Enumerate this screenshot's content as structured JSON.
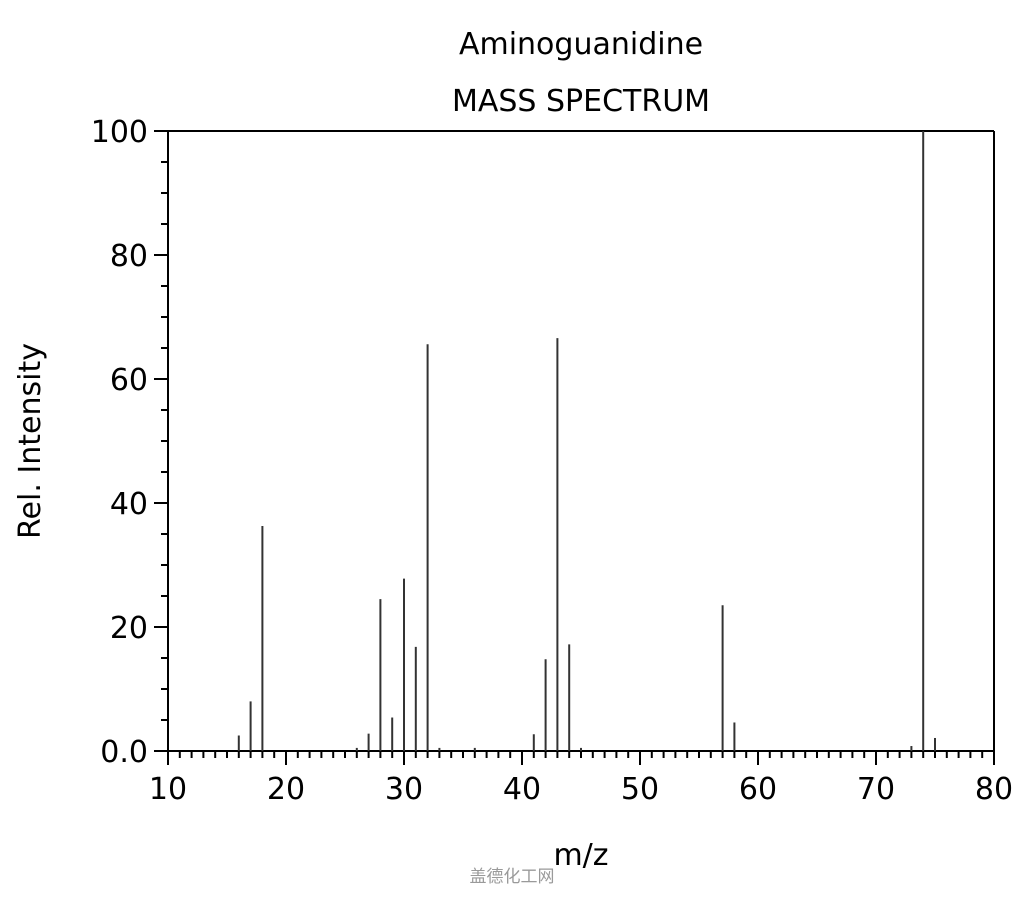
{
  "chart_data": {
    "type": "bar",
    "title": "Aminoguanidine",
    "subtitle": "MASS SPECTRUM",
    "xlabel": "m/z",
    "ylabel": "Rel. Intensity",
    "xlim": [
      10,
      80
    ],
    "ylim": [
      0,
      100
    ],
    "x_ticks": [
      10,
      20,
      30,
      40,
      50,
      60,
      70,
      80
    ],
    "x_tick_labels": [
      "10",
      "20",
      "30",
      "40",
      "50",
      "60",
      "70",
      "80"
    ],
    "y_ticks": [
      0,
      20,
      40,
      60,
      80,
      100
    ],
    "y_tick_labels": [
      "0.0",
      "20",
      "40",
      "60",
      "80",
      "100"
    ],
    "grid": false,
    "series": [
      {
        "x": [
          16,
          17,
          18,
          26,
          27,
          28,
          29,
          30,
          31,
          32,
          33,
          36,
          41,
          42,
          43,
          44,
          45,
          57,
          58,
          73,
          74,
          75
        ],
        "values": [
          2.5,
          8,
          36.3,
          0.5,
          2.8,
          24.5,
          5.4,
          27.8,
          16.8,
          65.6,
          0.5,
          0.5,
          2.7,
          14.8,
          66.6,
          17.2,
          0.5,
          23.5,
          4.6,
          0.8,
          100,
          2.1
        ]
      }
    ]
  },
  "watermark": "盖德化工网",
  "colors": {
    "bar": "#333333",
    "axis": "#000000",
    "background": "#ffffff"
  }
}
